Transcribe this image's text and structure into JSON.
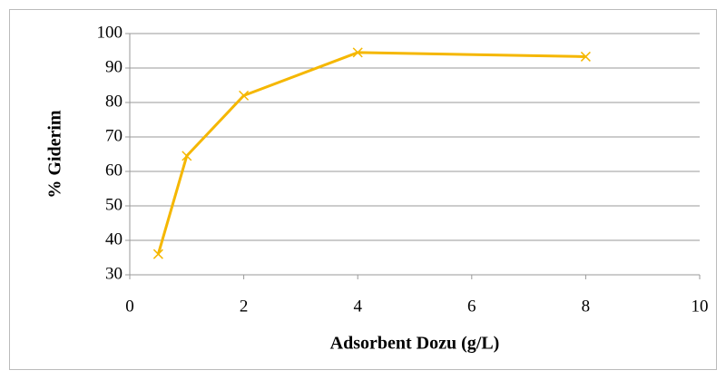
{
  "chart_data": {
    "type": "line",
    "xlabel": "Adsorbent Dozu (g/L)",
    "ylabel": "% Giderim",
    "x": [
      0.5,
      1,
      2,
      4,
      8
    ],
    "series": [
      {
        "name": "Giderim",
        "color": "#f5b700",
        "values": [
          36,
          64.5,
          82,
          94.5,
          93.3
        ]
      }
    ],
    "xlim": [
      0,
      10
    ],
    "xticks": [
      0,
      2,
      4,
      6,
      8,
      10
    ],
    "ylim": [
      30,
      100
    ],
    "yticks": [
      30,
      40,
      50,
      60,
      70,
      80,
      90,
      100
    ],
    "grid": true,
    "marker": "x"
  }
}
